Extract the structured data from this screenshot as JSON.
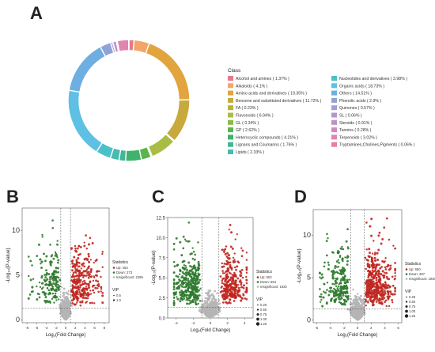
{
  "panels": {
    "a": "A",
    "b": "B",
    "c": "C",
    "d": "D"
  },
  "chart_data": [
    {
      "type": "pie",
      "variant": "donut",
      "legend_title": "Class",
      "legend_placement": "right",
      "slices": [
        {
          "label": "Alcohol and amines ( 1.37% )",
          "value": 1.37,
          "color": "#e8798b"
        },
        {
          "label": "Alkaloids ( 4.1% )",
          "value": 4.1,
          "color": "#f2a66a"
        },
        {
          "label": "Amino acids and derivatives ( 19.35% )",
          "value": 19.35,
          "color": "#e2a43f"
        },
        {
          "label": "Benzene and substituted derivatives ( 11.72% )",
          "value": 11.72,
          "color": "#c8a93b"
        },
        {
          "label": "FA ( 0.23% )",
          "value": 0.23,
          "color": "#b7b23b"
        },
        {
          "label": "Flavonoids ( 6.94% )",
          "value": 6.94,
          "color": "#a9bd45"
        },
        {
          "label": "GL ( 0.34% )",
          "value": 0.34,
          "color": "#88bb46"
        },
        {
          "label": "GP ( 2.62% )",
          "value": 2.62,
          "color": "#5bb44e"
        },
        {
          "label": "Heterocyclic compounds ( 4.21% )",
          "value": 4.21,
          "color": "#3fb36b"
        },
        {
          "label": "Lignans and Coumarins ( 1.76% )",
          "value": 1.76,
          "color": "#42b794"
        },
        {
          "label": "Lipids ( 2.33% )",
          "value": 2.33,
          "color": "#48bbb1"
        },
        {
          "label": "Nucleotides and derivatives ( 3.98% )",
          "value": 3.98,
          "color": "#4bc0c8"
        },
        {
          "label": "Organic acids ( 18.73% )",
          "value": 18.73,
          "color": "#5ec0e3"
        },
        {
          "label": "Others ( 14.51% )",
          "value": 14.51,
          "color": "#6eaee0"
        },
        {
          "label": "Phenolic acids ( 2.9% )",
          "value": 2.9,
          "color": "#8fa3d6"
        },
        {
          "label": "Quinones ( 0.57% )",
          "value": 0.57,
          "color": "#a79dd3"
        },
        {
          "label": "SL ( 0.06% )",
          "value": 0.06,
          "color": "#b496cf"
        },
        {
          "label": "Steroids ( 0.91% )",
          "value": 0.91,
          "color": "#c18fca"
        },
        {
          "label": "Tannins ( 0.28% )",
          "value": 0.28,
          "color": "#d18ac1"
        },
        {
          "label": "Terpenoids ( 3.02% )",
          "value": 3.02,
          "color": "#e184b0"
        },
        {
          "label": "Tryptamines,Cholines,Pigments ( 0.06% )",
          "value": 0.06,
          "color": "#e87e9e"
        }
      ]
    },
    {
      "type": "scatter",
      "panel": "B",
      "xlabel": "Log₂(Fold Change)",
      "ylabel": "-Log₁₀(P-value)",
      "xlim": [
        -9,
        9
      ],
      "ylim": [
        -0.3,
        12.5
      ],
      "x_ticks": [
        "-8",
        "-6",
        "-4",
        "-2",
        "0",
        "2",
        "4",
        "6",
        "8"
      ],
      "y_ticks": [
        "0",
        "5",
        "10"
      ],
      "thresholds": {
        "x": [
          -1,
          1
        ],
        "y": 1.3
      },
      "stats_title": "Statistics",
      "stats": [
        {
          "label": "Up: 463",
          "color": "#c0261f"
        },
        {
          "label": "Down: 273",
          "color": "#2d7a2d"
        },
        {
          "label": "Insignificant: 2269",
          "color": "#b5b5b5"
        }
      ],
      "vip_title": "VIP",
      "vip": [
        "0.5",
        "1.0"
      ],
      "counts": {
        "up": 463,
        "down": 273,
        "insignificant": 2269
      },
      "colors": {
        "up": "#c0261f",
        "down": "#2d7a2d",
        "insignificant": "#b5b5b5"
      }
    },
    {
      "type": "scatter",
      "panel": "C",
      "xlabel": "Log₂(Fold Change)",
      "ylabel": "-Log₁₀(P-value)",
      "xlim": [
        -5,
        5
      ],
      "ylim": [
        0,
        12.5
      ],
      "x_ticks": [
        "-4",
        "-2",
        "0",
        "2",
        "4"
      ],
      "y_ticks": [
        "0.0",
        "2.5",
        "5.0",
        "7.5",
        "10.0",
        "12.5"
      ],
      "thresholds": {
        "x": [
          -1,
          1
        ],
        "y": 1.3
      },
      "stats_title": "Statistics",
      "stats": [
        {
          "label": "Up: 502",
          "color": "#c0261f"
        },
        {
          "label": "Down: 554",
          "color": "#2d7a2d"
        },
        {
          "label": "Insignificant: 1920",
          "color": "#b5b5b5"
        }
      ],
      "vip_title": "VIP",
      "vip": [
        "0.25",
        "0.50",
        "0.75",
        "1.00",
        "1.25"
      ],
      "counts": {
        "up": 502,
        "down": 554,
        "insignificant": 1920
      },
      "colors": {
        "up": "#c0261f",
        "down": "#2d7a2d",
        "insignificant": "#b5b5b5"
      }
    },
    {
      "type": "scatter",
      "panel": "D",
      "xlabel": "Log₂(Fold Change)",
      "ylabel": "-Log₁₀(P-value)",
      "xlim": [
        -6.5,
        6.5
      ],
      "ylim": [
        -0.3,
        13
      ],
      "x_ticks": [
        "-6",
        "-4",
        "-2",
        "0",
        "2",
        "4",
        "6"
      ],
      "y_ticks": [
        "0",
        "5",
        "10"
      ],
      "thresholds": {
        "x": [
          -1,
          1
        ],
        "y": 1.3
      },
      "stats_title": "Statistics",
      "stats": [
        {
          "label": "Up: 680",
          "color": "#c0261f"
        },
        {
          "label": "Down: 387",
          "color": "#2d7a2d"
        },
        {
          "label": "Insignificant: 1946",
          "color": "#b5b5b5"
        }
      ],
      "vip_title": "VIP",
      "vip": [
        "0.25",
        "0.50",
        "0.75",
        "1.00",
        "1.25"
      ],
      "counts": {
        "up": 680,
        "down": 387,
        "insignificant": 1946
      },
      "colors": {
        "up": "#c0261f",
        "down": "#2d7a2d",
        "insignificant": "#b5b5b5"
      }
    }
  ]
}
